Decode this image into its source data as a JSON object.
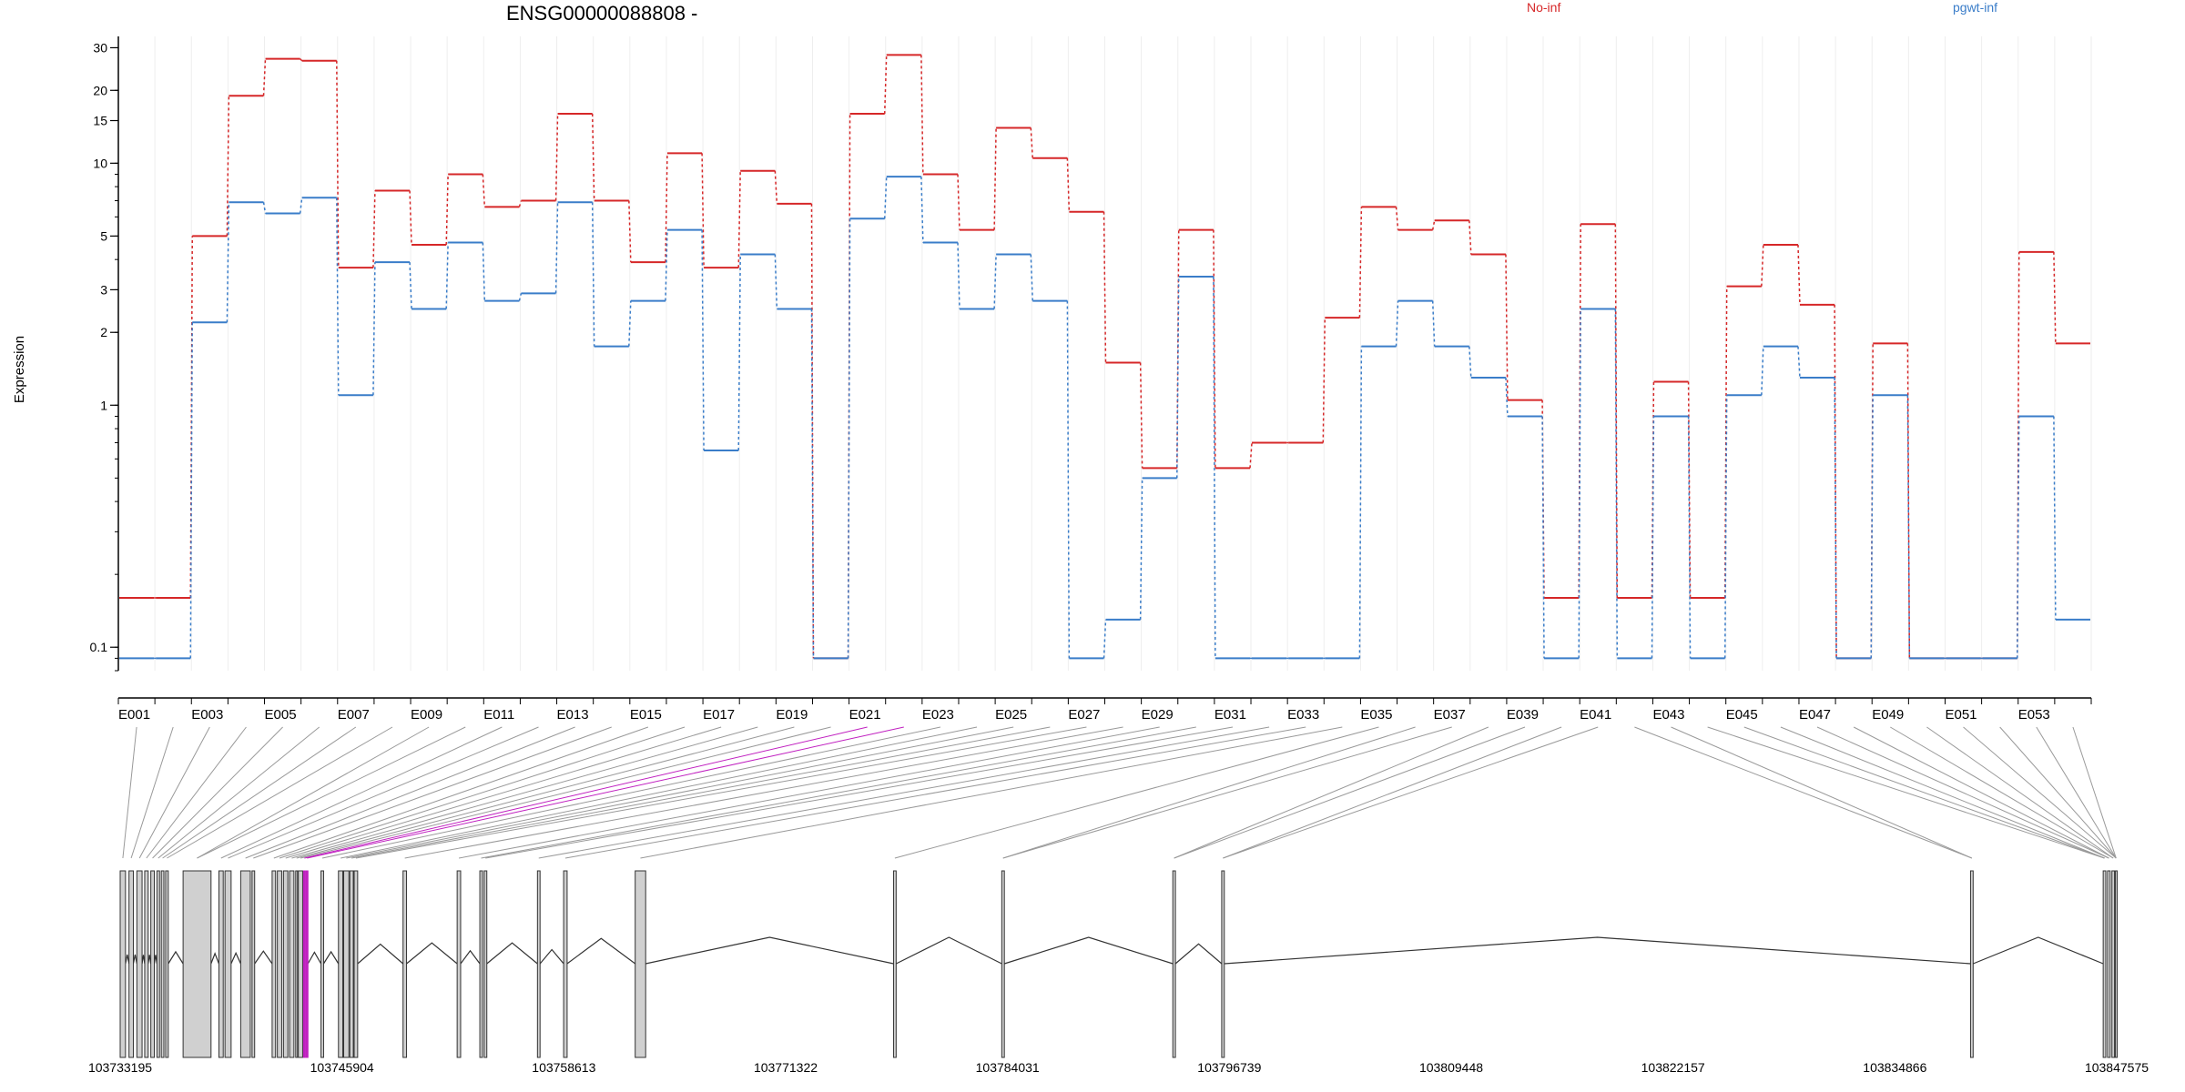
{
  "chart_data": {
    "type": "line",
    "title": "ENSG00000088808 -",
    "ylabel": "Expression",
    "yscale": "log",
    "ylim": [
      0.08,
      32
    ],
    "y_ticks": [
      0.1,
      1,
      2,
      3,
      5,
      10,
      15,
      20,
      30
    ],
    "y_tick_labels": [
      "0.1",
      "1",
      "2",
      "3",
      "5",
      "10",
      "15",
      "20",
      "30"
    ],
    "grid": "vertical lines at each exon",
    "legend": [
      {
        "name": "No-inf",
        "color": "#d62728",
        "position": "top-center"
      },
      {
        "name": "pgwt-inf",
        "color": "#3a7dc9",
        "position": "top-right"
      }
    ],
    "categories": [
      "E001",
      "E002",
      "E003",
      "E004",
      "E005",
      "E006",
      "E007",
      "E008",
      "E009",
      "E010",
      "E011",
      "E012",
      "E013",
      "E014",
      "E015",
      "E016",
      "E017",
      "E018",
      "E019",
      "E020",
      "E021",
      "E022",
      "E023",
      "E024",
      "E025",
      "E026",
      "E027",
      "E028",
      "E029",
      "E030",
      "E031",
      "E032",
      "E033",
      "E034",
      "E035",
      "E036",
      "E037",
      "E038",
      "E039",
      "E040",
      "E041",
      "E042",
      "E043",
      "E044",
      "E045",
      "E046",
      "E047",
      "E048",
      "E049",
      "E050",
      "E051",
      "E052",
      "E053",
      "E054"
    ],
    "category_labels": [
      "E001",
      "",
      "E003",
      "",
      "E005",
      "",
      "E007",
      "",
      "E009",
      "",
      "E011",
      "",
      "E013",
      "",
      "E015",
      "",
      "E017",
      "",
      "E019",
      "",
      "E021",
      "",
      "E023",
      "",
      "E025",
      "",
      "E027",
      "",
      "E029",
      "",
      "E031",
      "",
      "E033",
      "",
      "E035",
      "",
      "E037",
      "",
      "E039",
      "",
      "E041",
      "",
      "E043",
      "",
      "E045",
      "",
      "E047",
      "",
      "E049",
      "",
      "E051",
      "",
      "E053",
      ""
    ],
    "series": [
      {
        "name": "No-inf",
        "color": "#d62728",
        "values": [
          0.16,
          0.16,
          5,
          19,
          27,
          26.5,
          3.7,
          7.7,
          4.6,
          9,
          6.6,
          7,
          16,
          7,
          3.9,
          11,
          3.7,
          9.3,
          6.8,
          0.09,
          16,
          28,
          9,
          5.3,
          14,
          10.5,
          6.3,
          1.5,
          0.55,
          5.3,
          0.55,
          0.7,
          0.7,
          2.3,
          6.6,
          5.3,
          5.8,
          4.2,
          1.05,
          0.16,
          5.6,
          0.16,
          1.25,
          0.16,
          3.1,
          4.6,
          2.6,
          0.09,
          1.8,
          0.09,
          0.09,
          0.09,
          4.3,
          1.8
        ]
      },
      {
        "name": "pgwt-inf",
        "color": "#3a7dc9",
        "values": [
          0.09,
          0.09,
          2.2,
          6.9,
          6.2,
          7.2,
          1.1,
          3.9,
          2.5,
          4.7,
          2.7,
          2.9,
          6.9,
          1.75,
          2.7,
          5.3,
          0.65,
          4.2,
          2.5,
          0.09,
          5.9,
          8.8,
          4.7,
          2.5,
          4.2,
          2.7,
          0.09,
          0.13,
          0.5,
          3.4,
          0.09,
          0.09,
          0.09,
          0.09,
          1.75,
          2.7,
          1.75,
          1.3,
          0.9,
          0.09,
          2.5,
          0.09,
          0.9,
          0.09,
          1.1,
          1.75,
          1.3,
          0.09,
          1.1,
          0.09,
          0.09,
          0.09,
          0.9,
          0.13
        ]
      }
    ],
    "gene_model": {
      "start": 103733195,
      "end": 103847575,
      "axis_labels": [
        "103733195",
        "103745904",
        "103758613",
        "103771322",
        "103784031",
        "103796739",
        "103809448",
        "103822157",
        "103834866",
        "103847575"
      ],
      "highlight_color": "#c020c0",
      "exons": [
        {
          "s": 103733195,
          "e": 103733500
        },
        {
          "s": 103733700,
          "e": 103733950
        },
        {
          "s": 103734150,
          "e": 103734450
        },
        {
          "s": 103734600,
          "e": 103734800
        },
        {
          "s": 103734950,
          "e": 103735150
        },
        {
          "s": 103735300,
          "e": 103735450
        },
        {
          "s": 103735550,
          "e": 103735700
        },
        {
          "s": 103735800,
          "e": 103735950
        },
        {
          "s": 103736800,
          "e": 103738400
        },
        {
          "s": 103738850,
          "e": 103739100
        },
        {
          "s": 103739200,
          "e": 103739550
        },
        {
          "s": 103740100,
          "e": 103740650
        },
        {
          "s": 103740750,
          "e": 103740900
        },
        {
          "s": 103741900,
          "e": 103742100
        },
        {
          "s": 103742200,
          "e": 103742450
        },
        {
          "s": 103742550,
          "e": 103742800
        },
        {
          "s": 103742900,
          "e": 103743150
        },
        {
          "s": 103743250,
          "e": 103743350
        },
        {
          "s": 103743400,
          "e": 103743650
        },
        {
          "s": 103743700,
          "e": 103743800,
          "hl": true
        },
        {
          "s": 103743850,
          "e": 103743950,
          "hl": true
        },
        {
          "s": 103744700,
          "e": 103744850
        },
        {
          "s": 103745700,
          "e": 103745950
        },
        {
          "s": 103746000,
          "e": 103746300
        },
        {
          "s": 103746350,
          "e": 103746550
        },
        {
          "s": 103746600,
          "e": 103746800
        },
        {
          "s": 103749400,
          "e": 103749600
        },
        {
          "s": 103752500,
          "e": 103752700
        },
        {
          "s": 103753800,
          "e": 103753950
        },
        {
          "s": 103754050,
          "e": 103754200
        },
        {
          "s": 103757100,
          "e": 103757250
        },
        {
          "s": 103758600,
          "e": 103758800
        },
        {
          "s": 103762700,
          "e": 103763300
        },
        {
          "s": 103777500,
          "e": 103777650
        },
        {
          "s": 103783700,
          "e": 103783850
        },
        {
          "s": 103793500,
          "e": 103793650
        },
        {
          "s": 103796300,
          "e": 103796450
        },
        {
          "s": 103839200,
          "e": 103839350
        },
        {
          "s": 103846800,
          "e": 103846950
        },
        {
          "s": 103847050,
          "e": 103847200
        },
        {
          "s": 103847300,
          "e": 103847450
        },
        {
          "s": 103847500,
          "e": 103847575
        }
      ],
      "exon_to_map": [
        0,
        1,
        2,
        3,
        4,
        5,
        6,
        7,
        8,
        8,
        9,
        10,
        11,
        12,
        13,
        14,
        15,
        16,
        17,
        18,
        19,
        20,
        21,
        22,
        23,
        24,
        25,
        26,
        27,
        28,
        29,
        30,
        31,
        32,
        33,
        34,
        34,
        35,
        35,
        36,
        36,
        37,
        37,
        38,
        38,
        38,
        39,
        39,
        40,
        40,
        41,
        41,
        41,
        41
      ]
    }
  }
}
